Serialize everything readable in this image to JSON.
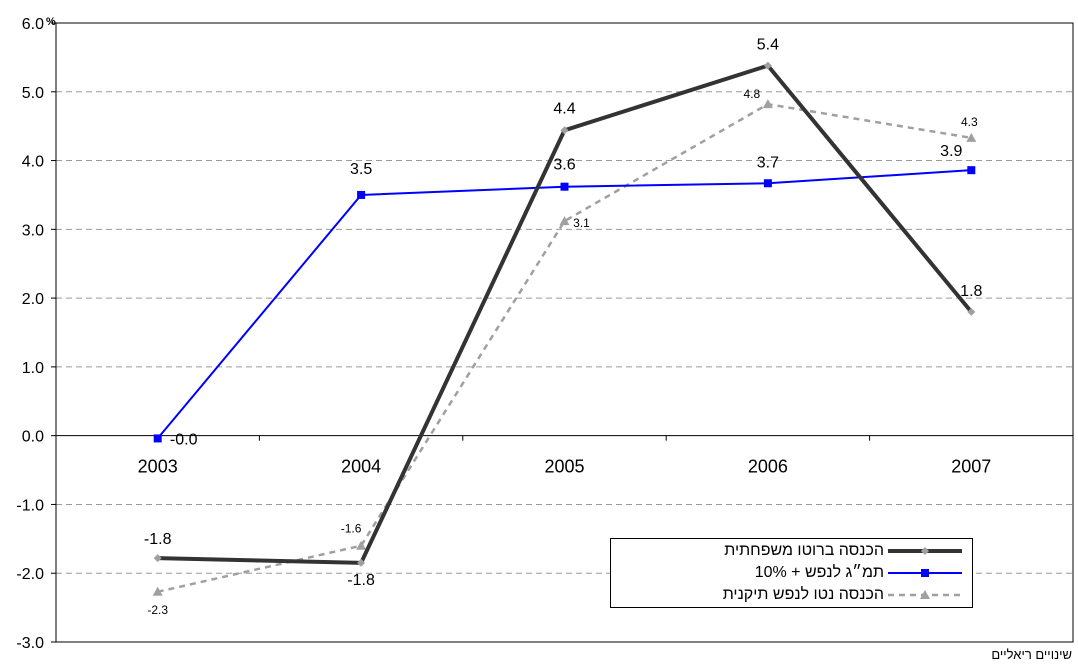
{
  "chart_data": {
    "type": "line",
    "title": "",
    "xlabel": "",
    "ylabel": "%",
    "categories": [
      "2003",
      "2004",
      "2005",
      "2006",
      "2007"
    ],
    "ylim": [
      -3.0,
      6.0
    ],
    "yticks": [
      "6.0",
      "5.0",
      "4.0",
      "3.0",
      "2.0",
      "1.0",
      "0.0",
      "-1.0",
      "-2.0",
      "-3.0"
    ],
    "grid": true,
    "legend_position": "bottom-right",
    "series": [
      {
        "name": "הכנסה ברוטו משפחתית",
        "values": [
          -1.78,
          -1.85,
          4.44,
          5.38,
          1.8
        ],
        "labels": [
          "-1.8",
          "-1.8",
          "4.4",
          "5.4",
          "1.8"
        ],
        "color": "#333333",
        "style": "solid-thick",
        "marker": "diamond"
      },
      {
        "name": "תמ״ג לנפש + 10%",
        "values": [
          -0.04,
          3.5,
          3.62,
          3.67,
          3.86
        ],
        "labels": [
          "-0.0",
          "3.5",
          "3.6",
          "3.7",
          "3.9"
        ],
        "color": "#0000ff",
        "style": "solid",
        "marker": "square"
      },
      {
        "name": "הכנסה נטו לנפש תיקנית",
        "values": [
          -2.27,
          -1.6,
          3.12,
          4.82,
          4.33
        ],
        "labels": [
          "-2.3",
          "-1.6",
          "3.1",
          "4.8",
          "4.3"
        ],
        "color": "#a0a0a0",
        "style": "dashed",
        "marker": "triangle"
      }
    ]
  },
  "footer_note": "שינויים ריאליים"
}
